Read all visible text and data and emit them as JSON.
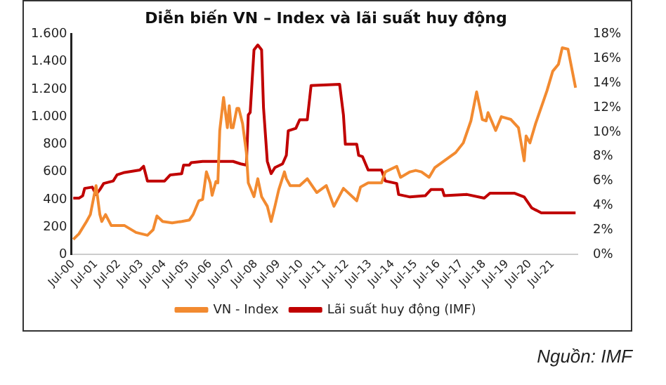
{
  "chart_data": {
    "type": "line",
    "title": "Diễn biến VN – Index và lãi suất huy động",
    "legend": "bottom",
    "marker": "none",
    "line_style": "solid",
    "grid": false,
    "xlim": [
      "2000-06",
      "2022-08"
    ],
    "xticks": [
      {
        "value": "2000-07",
        "label": "Jul-00"
      },
      {
        "value": "2001-07",
        "label": "Jul-01"
      },
      {
        "value": "2002-07",
        "label": "Jul-02"
      },
      {
        "value": "2003-07",
        "label": "Jul-03"
      },
      {
        "value": "2004-07",
        "label": "Jul-04"
      },
      {
        "value": "2005-07",
        "label": "Jul-05"
      },
      {
        "value": "2006-07",
        "label": "Jul-06"
      },
      {
        "value": "2007-07",
        "label": "Jul-07"
      },
      {
        "value": "2008-07",
        "label": "Jul-08"
      },
      {
        "value": "2009-07",
        "label": "Jul-09"
      },
      {
        "value": "2010-07",
        "label": "Jul-10"
      },
      {
        "value": "2011-07",
        "label": "Jul-11"
      },
      {
        "value": "2012-07",
        "label": "Jul-12"
      },
      {
        "value": "2013-07",
        "label": "Jul-13"
      },
      {
        "value": "2014-07",
        "label": "Jul-14"
      },
      {
        "value": "2015-07",
        "label": "Jul-15"
      },
      {
        "value": "2016-07",
        "label": "Jul-16"
      },
      {
        "value": "2017-07",
        "label": "Jul-17"
      },
      {
        "value": "2018-07",
        "label": "Jul-18"
      },
      {
        "value": "2019-07",
        "label": "Jul-19"
      },
      {
        "value": "2020-07",
        "label": "Jul-20"
      },
      {
        "value": "2021-07",
        "label": "Jul-21"
      }
    ],
    "ylim": [
      0,
      1600
    ],
    "yticks": [
      0,
      {
        "value": 200,
        "label": "200"
      },
      {
        "value": 400,
        "label": "400"
      },
      {
        "value": 600,
        "label": "600"
      },
      {
        "value": 800,
        "label": "800"
      },
      {
        "value": 1000,
        "label": "1.000"
      },
      {
        "value": 1200,
        "label": "1.200"
      },
      {
        "value": 1400,
        "label": "1.400"
      },
      {
        "value": 1600,
        "label": "1.600"
      }
    ],
    "y2lim": [
      0,
      18
    ],
    "y2ticks": [
      {
        "value": 0,
        "label": "0%"
      },
      {
        "value": 2,
        "label": "2%"
      },
      {
        "value": 4,
        "label": "4%"
      },
      {
        "value": 6,
        "label": "6%"
      },
      {
        "value": 8,
        "label": "8%"
      },
      {
        "value": 10,
        "label": "10%"
      },
      {
        "value": 12,
        "label": "12%"
      },
      {
        "value": 14,
        "label": "14%"
      },
      {
        "value": 16,
        "label": "16%"
      },
      {
        "value": 18,
        "label": "18%"
      }
    ],
    "series": [
      {
        "name": "VN - Index",
        "color": "#f28a30",
        "x": [
          "2000-07",
          "2000-10",
          "2001-02",
          "2001-04",
          "2001-07",
          "2001-09",
          "2001-10",
          "2001-12",
          "2002-03",
          "2002-10",
          "2003-04",
          "2003-10",
          "2004-01",
          "2004-03",
          "2004-06",
          "2004-11",
          "2005-04",
          "2005-08",
          "2005-10",
          "2006-01",
          "2006-03",
          "2006-05",
          "2006-07",
          "2006-08",
          "2006-10",
          "2006-11",
          "2006-12",
          "2007-02",
          "2007-04",
          "2007-05",
          "2007-06",
          "2007-07",
          "2007-09",
          "2007-10",
          "2007-12",
          "2008-02",
          "2008-03",
          "2008-06",
          "2008-08",
          "2008-10",
          "2009-01",
          "2009-03",
          "2009-05",
          "2009-07",
          "2009-10",
          "2009-11",
          "2010-01",
          "2010-06",
          "2010-10",
          "2011-03",
          "2011-08",
          "2011-12",
          "2012-05",
          "2012-12",
          "2013-02",
          "2013-06",
          "2014-01",
          "2014-03",
          "2014-09",
          "2014-11",
          "2015-04",
          "2015-07",
          "2015-10",
          "2016-02",
          "2016-05",
          "2016-10",
          "2017-04",
          "2017-08",
          "2017-12",
          "2018-03",
          "2018-06",
          "2018-08",
          "2018-09",
          "2019-01",
          "2019-04",
          "2019-09",
          "2020-01",
          "2020-04",
          "2020-05",
          "2020-07",
          "2020-10",
          "2021-02",
          "2021-04",
          "2021-07",
          "2021-10",
          "2021-12",
          "2022-03",
          "2022-07"
        ],
        "values": [
          110,
          150,
          240,
          290,
          500,
          290,
          240,
          290,
          210,
          210,
          160,
          140,
          180,
          280,
          240,
          230,
          240,
          250,
          290,
          390,
          400,
          600,
          520,
          430,
          530,
          520,
          900,
          1140,
          920,
          1080,
          920,
          920,
          1060,
          1060,
          950,
          740,
          520,
          420,
          550,
          420,
          350,
          240,
          350,
          470,
          600,
          550,
          500,
          500,
          550,
          450,
          500,
          350,
          480,
          390,
          490,
          520,
          520,
          600,
          640,
          560,
          600,
          610,
          600,
          560,
          630,
          680,
          740,
          810,
          970,
          1180,
          980,
          970,
          1030,
          900,
          1000,
          980,
          920,
          680,
          860,
          810,
          950,
          1110,
          1190,
          1330,
          1380,
          1500,
          1490,
          1210
        ]
      },
      {
        "name": "Lãi suất huy động (IMF)",
        "color": "#c00000",
        "axis": "y2",
        "x": [
          "2000-07",
          "2000-10",
          "2000-12",
          "2001-01",
          "2001-05",
          "2001-07",
          "2001-09",
          "2001-11",
          "2002-04",
          "2002-06",
          "2002-10",
          "2003-06",
          "2003-08",
          "2003-10",
          "2004-07",
          "2004-10",
          "2005-04",
          "2005-05",
          "2005-08",
          "2005-09",
          "2006-03",
          "2007-07",
          "2007-11",
          "2008-02",
          "2008-03",
          "2008-04",
          "2008-06",
          "2008-08",
          "2008-10",
          "2008-11",
          "2009-01",
          "2009-03",
          "2009-05",
          "2009-09",
          "2009-11",
          "2009-12",
          "2010-04",
          "2010-06",
          "2010-10",
          "2010-12",
          "2012-03",
          "2012-05",
          "2012-06",
          "2012-12",
          "2013-01",
          "2013-03",
          "2013-06",
          "2014-01",
          "2014-03",
          "2014-09",
          "2014-10",
          "2015-04",
          "2015-12",
          "2016-03",
          "2016-09",
          "2016-10",
          "2017-10",
          "2018-07",
          "2018-10",
          "2019-11",
          "2020-04",
          "2020-08",
          "2021-01",
          "2021-05",
          "2022-07"
        ],
        "values": [
          4.6,
          4.6,
          4.8,
          5.4,
          5.5,
          4.9,
          5.3,
          5.8,
          6.0,
          6.5,
          6.7,
          6.9,
          7.2,
          6.0,
          6.0,
          6.5,
          6.6,
          7.3,
          7.3,
          7.5,
          7.6,
          7.6,
          7.4,
          7.3,
          11.4,
          11.6,
          16.7,
          17.1,
          16.7,
          12.0,
          7.6,
          6.6,
          7.1,
          7.4,
          8.1,
          10.1,
          10.3,
          11.0,
          11.0,
          13.8,
          13.9,
          11.4,
          9.0,
          9.0,
          8.1,
          8.0,
          6.9,
          6.9,
          6.0,
          5.8,
          4.9,
          4.7,
          4.8,
          5.3,
          5.3,
          4.8,
          4.9,
          4.6,
          5.0,
          5.0,
          4.7,
          3.8,
          3.4,
          3.4,
          3.4
        ]
      }
    ],
    "annotations": [
      "Nguồn: IMF"
    ]
  }
}
